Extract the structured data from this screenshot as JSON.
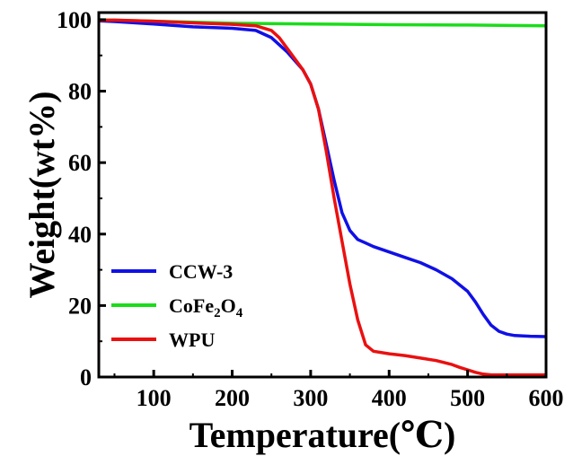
{
  "chart_data": {
    "type": "line",
    "xlabel": "Temperature(℃)",
    "ylabel": "Weight(wt%)",
    "xlim": [
      30,
      600
    ],
    "ylim": [
      0,
      102
    ],
    "xticks": [
      100,
      200,
      300,
      400,
      500,
      600
    ],
    "yticks": [
      0,
      20,
      40,
      60,
      80,
      100
    ],
    "grid": false,
    "legend_position": "lower-left",
    "series": [
      {
        "name": "CCW-3",
        "legend_main": "CCW-3",
        "color": "#1010e6",
        "x": [
          30,
          50,
          100,
          150,
          200,
          230,
          250,
          270,
          290,
          300,
          310,
          320,
          330,
          340,
          350,
          360,
          370,
          380,
          400,
          420,
          440,
          460,
          480,
          500,
          510,
          520,
          530,
          540,
          550,
          560,
          580,
          600
        ],
        "y": [
          99.7,
          99.5,
          98.8,
          98.0,
          97.6,
          97.0,
          95.0,
          91.0,
          86.0,
          82.0,
          75.0,
          65.0,
          55.0,
          46.0,
          41.0,
          38.5,
          37.5,
          36.5,
          35.0,
          33.5,
          32.0,
          30.0,
          27.5,
          24.0,
          21.0,
          17.5,
          14.5,
          12.8,
          12.0,
          11.6,
          11.4,
          11.3
        ]
      },
      {
        "name": "CoFe2O4",
        "legend_main": "CoFe",
        "legend_sub1": "2",
        "legend_mid": "O",
        "legend_sub2": "4",
        "color": "#1adc1a",
        "x": [
          30,
          100,
          200,
          300,
          400,
          500,
          600
        ],
        "y": [
          100.0,
          99.6,
          99.0,
          98.8,
          98.6,
          98.5,
          98.3
        ]
      },
      {
        "name": "WPU",
        "legend_main": "WPU",
        "color": "#ea1010",
        "x": [
          30,
          50,
          100,
          150,
          200,
          230,
          250,
          260,
          270,
          280,
          290,
          300,
          310,
          320,
          330,
          340,
          350,
          360,
          370,
          380,
          400,
          420,
          440,
          460,
          480,
          490,
          500,
          510,
          520,
          530,
          550,
          600
        ],
        "y": [
          99.8,
          99.9,
          99.6,
          99.1,
          98.7,
          98.3,
          97.0,
          95.0,
          92.0,
          89.0,
          86.0,
          82.0,
          75.0,
          63.0,
          50.0,
          38.0,
          26.0,
          16.0,
          9.0,
          7.2,
          6.5,
          6.0,
          5.3,
          4.6,
          3.5,
          2.7,
          2.0,
          1.3,
          0.8,
          0.6,
          0.6,
          0.6
        ]
      }
    ]
  }
}
